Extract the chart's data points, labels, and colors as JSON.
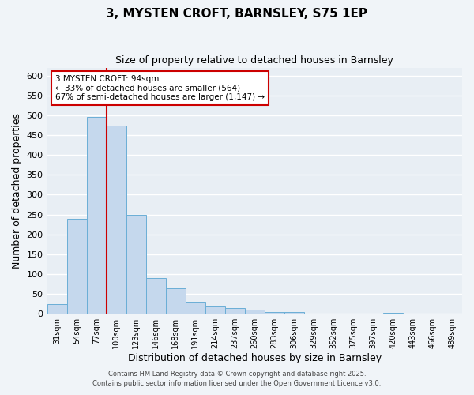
{
  "title": "3, MYSTEN CROFT, BARNSLEY, S75 1EP",
  "subtitle": "Size of property relative to detached houses in Barnsley",
  "xlabel": "Distribution of detached houses by size in Barnsley",
  "ylabel": "Number of detached properties",
  "bar_labels": [
    "31sqm",
    "54sqm",
    "77sqm",
    "100sqm",
    "123sqm",
    "146sqm",
    "168sqm",
    "191sqm",
    "214sqm",
    "237sqm",
    "260sqm",
    "283sqm",
    "306sqm",
    "329sqm",
    "352sqm",
    "375sqm",
    "397sqm",
    "420sqm",
    "443sqm",
    "466sqm",
    "489sqm"
  ],
  "bar_values": [
    25,
    240,
    495,
    473,
    250,
    90,
    65,
    30,
    20,
    15,
    10,
    5,
    4,
    0,
    0,
    0,
    0,
    3,
    0,
    0,
    1
  ],
  "bar_color": "#c5d8ed",
  "bar_edge_color": "#6aaed6",
  "vline_color": "#cc0000",
  "annotation_title": "3 MYSTEN CROFT: 94sqm",
  "annotation_line1": "← 33% of detached houses are smaller (564)",
  "annotation_line2": "67% of semi-detached houses are larger (1,147) →",
  "annotation_box_color": "#ffffff",
  "annotation_box_edgecolor": "#cc0000",
  "ylim": [
    0,
    620
  ],
  "yticks": [
    0,
    50,
    100,
    150,
    200,
    250,
    300,
    350,
    400,
    450,
    500,
    550,
    600
  ],
  "footer1": "Contains HM Land Registry data © Crown copyright and database right 2025.",
  "footer2": "Contains public sector information licensed under the Open Government Licence v3.0.",
  "background_color": "#f0f4f8",
  "plot_bg_color": "#e8eef4",
  "grid_color": "#ffffff"
}
